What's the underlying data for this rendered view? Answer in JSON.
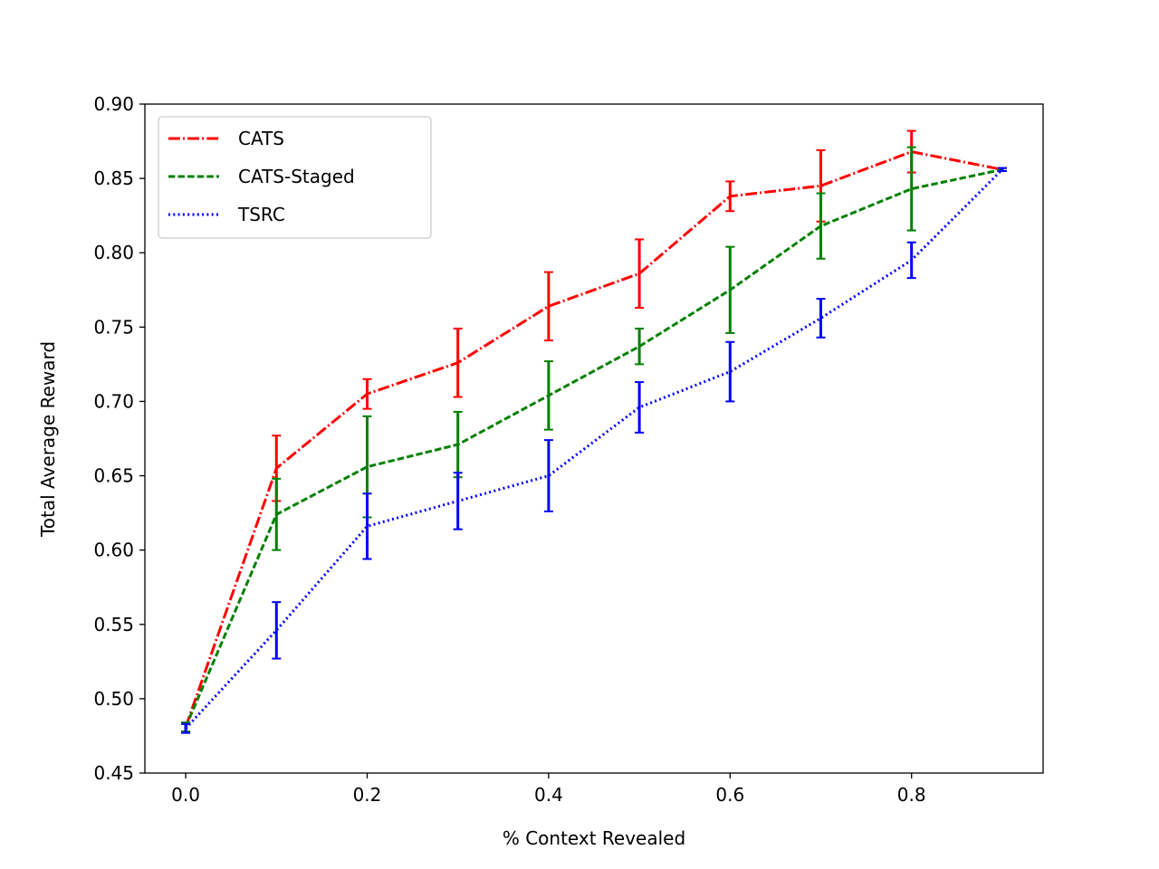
{
  "chart_data": {
    "type": "line",
    "title": "",
    "xlabel": "% Context Revealed",
    "ylabel": "Total Average Reward",
    "xlim": [
      -0.045,
      0.945
    ],
    "ylim": [
      0.45,
      0.9
    ],
    "xticks": [
      "0.0",
      "0.2",
      "0.4",
      "0.6",
      "0.8"
    ],
    "xtick_values": [
      0.0,
      0.2,
      0.4,
      0.6,
      0.8
    ],
    "yticks": [
      "0.45",
      "0.50",
      "0.55",
      "0.60",
      "0.65",
      "0.70",
      "0.75",
      "0.80",
      "0.85",
      "0.90"
    ],
    "ytick_values": [
      0.45,
      0.5,
      0.55,
      0.6,
      0.65,
      0.7,
      0.75,
      0.8,
      0.85,
      0.9
    ],
    "grid": false,
    "legend_position": "top-left",
    "x": [
      0.0,
      0.1,
      0.2,
      0.3,
      0.4,
      0.5,
      0.6,
      0.7,
      0.8,
      0.9
    ],
    "series": [
      {
        "name": "CATS",
        "color": "#ff0000",
        "dash": "dashdot",
        "values": [
          0.481,
          0.655,
          0.705,
          0.726,
          0.764,
          0.786,
          0.838,
          0.845,
          0.868,
          0.856
        ],
        "errors": [
          0.003,
          0.022,
          0.01,
          0.023,
          0.023,
          0.023,
          0.01,
          0.024,
          0.014,
          0.001
        ]
      },
      {
        "name": "CATS-Staged",
        "color": "#008000",
        "dash": "dashed",
        "values": [
          0.481,
          0.624,
          0.656,
          0.671,
          0.704,
          0.737,
          0.775,
          0.818,
          0.843,
          0.856
        ],
        "errors": [
          0.003,
          0.024,
          0.034,
          0.022,
          0.023,
          0.012,
          0.029,
          0.022,
          0.028,
          0.001
        ]
      },
      {
        "name": "TSRC",
        "color": "#0000ff",
        "dash": "dotted",
        "values": [
          0.48,
          0.546,
          0.616,
          0.633,
          0.65,
          0.696,
          0.72,
          0.756,
          0.795,
          0.856
        ],
        "errors": [
          0.003,
          0.019,
          0.022,
          0.019,
          0.024,
          0.017,
          0.02,
          0.013,
          0.012,
          0.001
        ]
      }
    ]
  }
}
